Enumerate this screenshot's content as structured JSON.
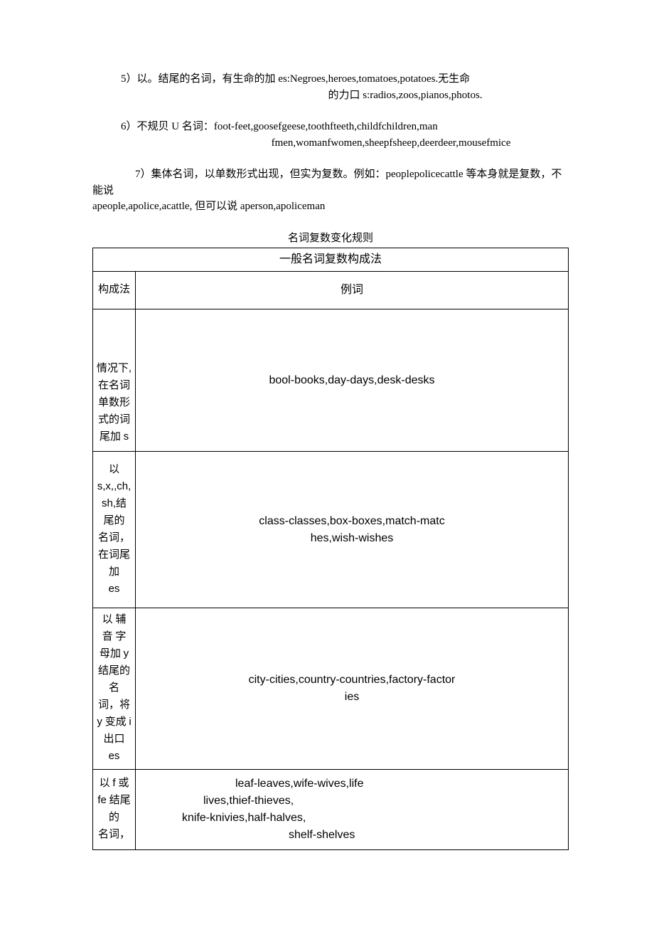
{
  "para5": {
    "line1": "5）以。结尾的名词，有生命的加 es:Negroes,heroes,tomatoes,potatoes.无生命",
    "line2": "的力口 s:radios,zoos,pianos,photos."
  },
  "para6": {
    "line1": "6）不规贝 U 名词：foot-feet,goosefgeese,toothfteeth,childfchildren,man",
    "line2": "fmen,womanfwomen,sheepfsheep,deerdeer,mousefmice"
  },
  "para7": {
    "line1_prefix": "7）集体名词，以单数形式出现，但实为复数。例如：peoplepolicecattle 等本身就是复数，不能说",
    "line2": "apeople,apolice,acattle, 但可以说 aperson,apoliceman"
  },
  "caption": "名词复数变化规则",
  "table": {
    "title": "一般名词复数构成法",
    "head_col1": "构成法",
    "head_col2": "例词",
    "rows": [
      {
        "rule": "情况下，在名词单数形式的词尾加 s",
        "example": "bool-books,day-days,desk-desks"
      },
      {
        "rule": "以s,x,,ch,sh,结尾的名词，在词尾加es",
        "example_l1": "class-classes,box-boxes,match-matc",
        "example_l2": "hes,wish-wishes"
      },
      {
        "rule": "以 辅音 字母加 y结尾的名词，将y 变成 i出口es",
        "example_l1": "city-cities,country-countries,factory-factor",
        "example_l2": "ies"
      },
      {
        "rule": "以 f 或fe 结尾的名词，",
        "example_l1": "leaf-leaves,wife-wives,life",
        "example_l2": "lives,thief-thieves,",
        "example_l3": "knife-knivies,half-halves,",
        "example_l4": "shelf-shelves"
      }
    ]
  }
}
